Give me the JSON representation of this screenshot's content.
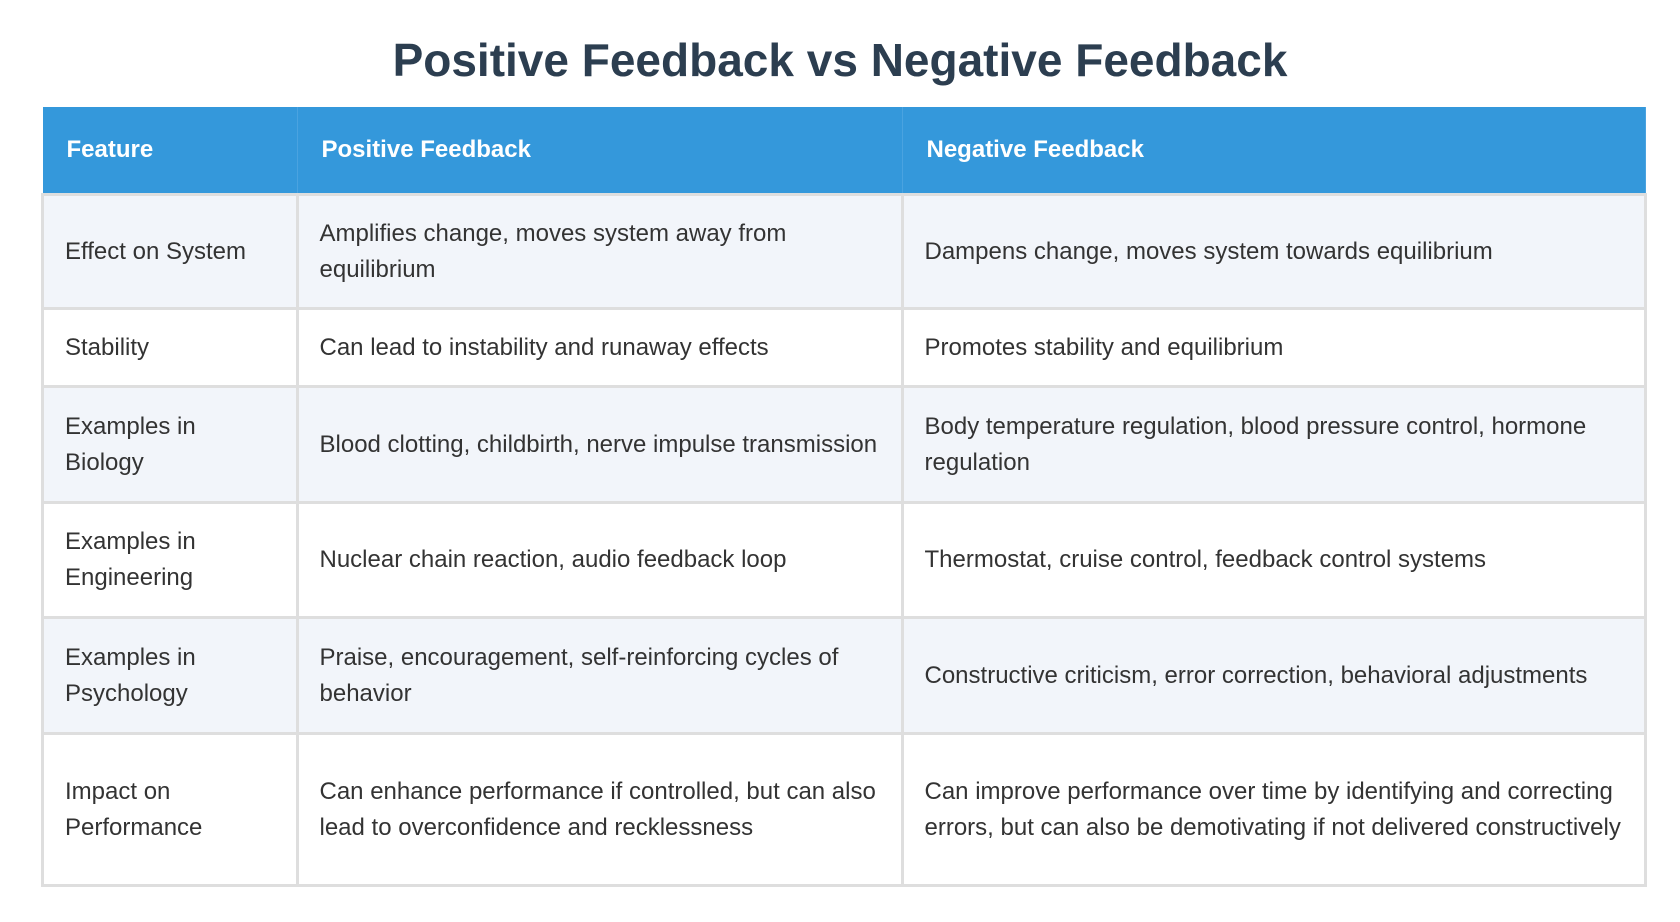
{
  "title": "Positive Feedback vs Negative Feedback",
  "headers": [
    "Feature",
    "Positive Feedback",
    "Negative Feedback"
  ],
  "rows": [
    [
      "Effect on System",
      "Amplifies change, moves system away from equilibrium",
      "Dampens change, moves system towards equilibrium"
    ],
    [
      "Stability",
      "Can lead to instability and runaway effects",
      "Promotes stability and equilibrium"
    ],
    [
      "Examples in Biology",
      "Blood clotting, childbirth, nerve impulse transmission",
      "Body temperature regulation, blood pressure control, hormone regulation"
    ],
    [
      "Examples in Engineering",
      "Nuclear chain reaction, audio feedback loop",
      "Thermostat, cruise control, feedback control systems"
    ],
    [
      "Examples in Psychology",
      "Praise, encouragement, self-reinforcing cycles of behavior",
      "Constructive criticism, error correction, behavioral adjustments"
    ],
    [
      "Impact on Performance",
      "Can enhance performance if controlled, but can also lead to overconfidence and recklessness",
      "Can improve performance over time by identifying and correcting errors, but can also be demotivating if not delivered constructively"
    ]
  ],
  "colors": {
    "header_bg": "#3498db",
    "title": "#2c3e50",
    "alt_row": "#f2f5fa"
  }
}
